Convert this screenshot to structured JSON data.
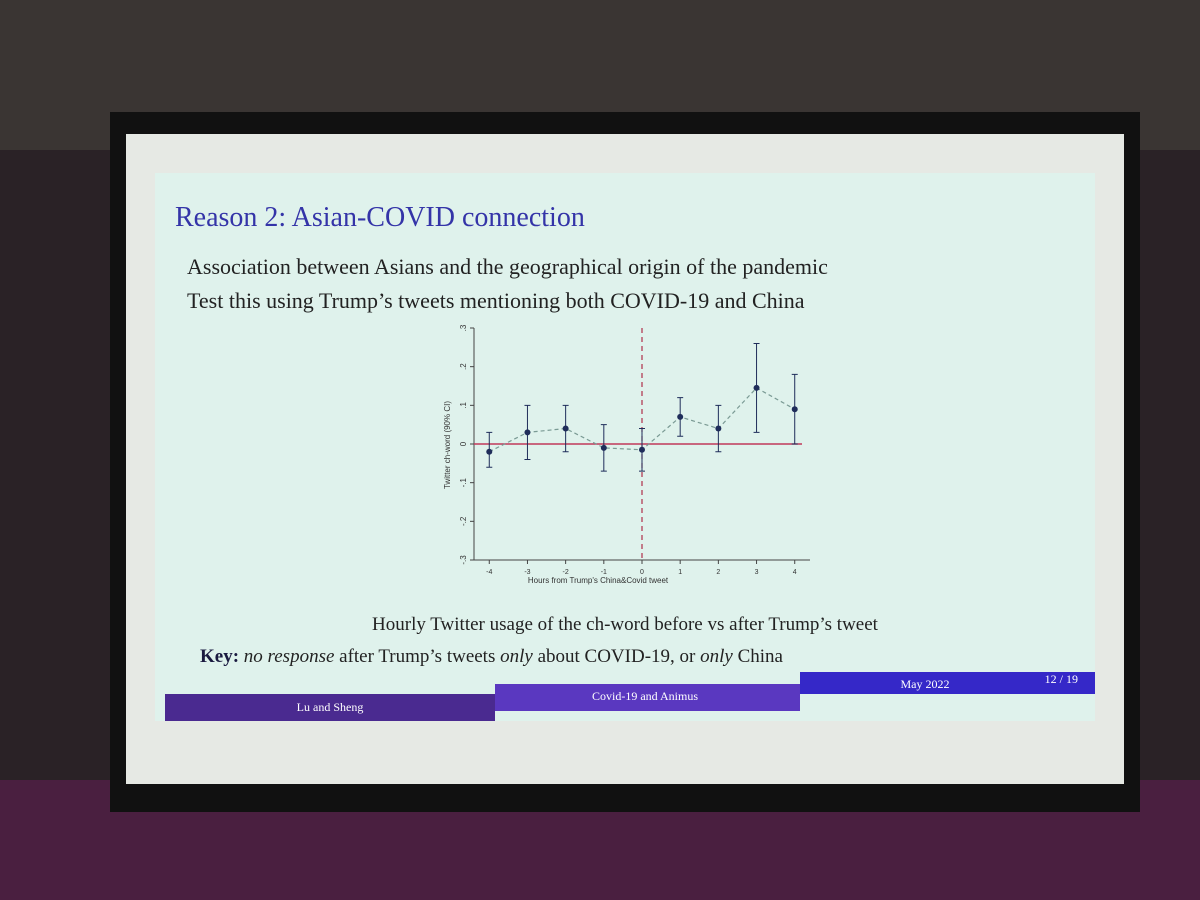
{
  "slide": {
    "title": "Reason 2: Asian-COVID connection",
    "bullets": [
      "Association between Asians and the geographical origin of the pandemic",
      "Test this using Trump’s tweets mentioning both COVID-19 and China"
    ],
    "caption": "Hourly Twitter usage of the ch-word before vs after Trump’s tweet",
    "key": [
      "Key:",
      "no response",
      "after Trump’s tweets",
      "only",
      "about COVID-19, or",
      "only",
      "China"
    ],
    "footer": {
      "authors": "Lu and Sheng",
      "short_title": "Covid-19 and Animus",
      "date": "May 2022",
      "page": "12 / 19"
    }
  },
  "chart_data": {
    "type": "scatter",
    "x_label": "Hours from Trump's China&Covid tweet",
    "y_label": "Twitter ch-word (90% CI)",
    "x": [
      -4,
      -3,
      -2,
      -1,
      0,
      1,
      2,
      3,
      4
    ],
    "series": [
      {
        "color": "#1f2d5a",
        "values": [
          -0.02,
          0.03,
          0.04,
          -0.01,
          -0.015,
          0.07,
          0.04,
          0.145,
          0.09
        ],
        "lower": [
          -0.06,
          -0.04,
          -0.02,
          -0.07,
          -0.07,
          0.02,
          -0.02,
          0.03,
          0.0
        ],
        "upper": [
          0.03,
          0.1,
          0.1,
          0.05,
          0.04,
          0.12,
          0.1,
          0.26,
          0.18
        ]
      }
    ],
    "xlim": [
      -4.4,
      4.4
    ],
    "ylim": [
      -0.3,
      0.3
    ],
    "xticks": [
      -4,
      -3,
      -2,
      -1,
      0,
      1,
      2,
      3,
      4
    ],
    "yticks": [
      {
        "value": -0.3,
        "label": "-.3"
      },
      {
        "value": -0.2,
        "label": "-.2"
      },
      {
        "value": -0.1,
        "label": "-.1"
      },
      0,
      {
        "value": 0.1,
        "label": ".1"
      },
      {
        "value": 0.2,
        "label": ".2"
      },
      {
        "value": 0.3,
        "label": ".3"
      }
    ],
    "hline": 0,
    "hline_color": "#c0395a",
    "vline": 0,
    "vline_color": "#b0304a"
  }
}
